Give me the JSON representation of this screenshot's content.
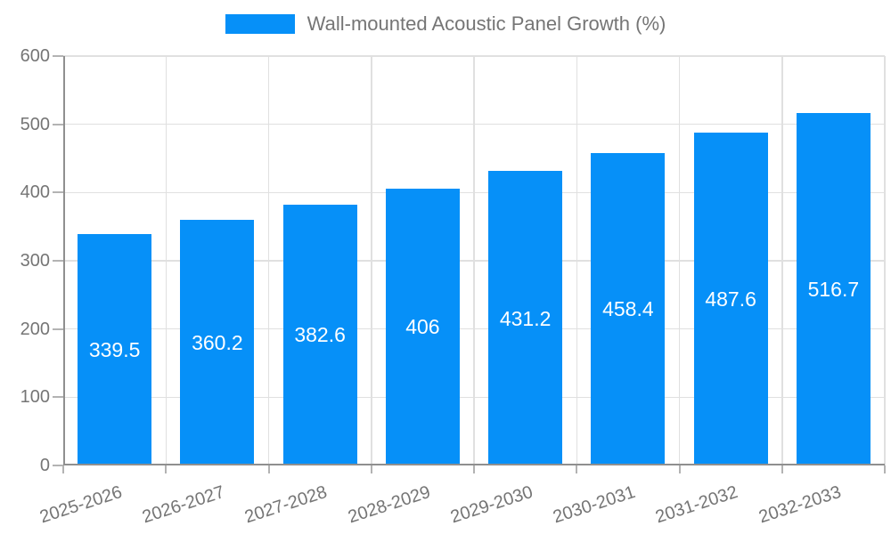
{
  "legend": {
    "label": "Wall-mounted Acoustic Panel Growth (%)"
  },
  "colors": {
    "bar": "#0690f8",
    "axis": "#8f8f8f",
    "grid": "#e0e0e0",
    "tick": "#b3b3b3",
    "tick_label": "#757575",
    "value_label": "#ffffff",
    "legend_text": "#757575",
    "background": "#ffffff"
  },
  "chart_data": {
    "type": "bar",
    "categories": [
      "2025-2026",
      "2026-2027",
      "2027-2028",
      "2028-2029",
      "2029-2030",
      "2030-2031",
      "2031-2032",
      "2032-2033"
    ],
    "series": [
      {
        "name": "Wall-mounted Acoustic Panel Growth (%)",
        "values": [
          339.5,
          360.2,
          382.6,
          406,
          431.2,
          458.4,
          487.6,
          516.7
        ]
      }
    ],
    "value_labels": [
      "339.5",
      "360.2",
      "382.6",
      "406",
      "431.2",
      "458.4",
      "487.6",
      "516.7"
    ],
    "ylim": [
      0,
      600
    ],
    "yticks": [
      0,
      100,
      200,
      300,
      400,
      500,
      600
    ],
    "grid": true,
    "legend_position": "top",
    "bar_label_position": "inside-middle",
    "x_label_rotation_deg": -18
  }
}
